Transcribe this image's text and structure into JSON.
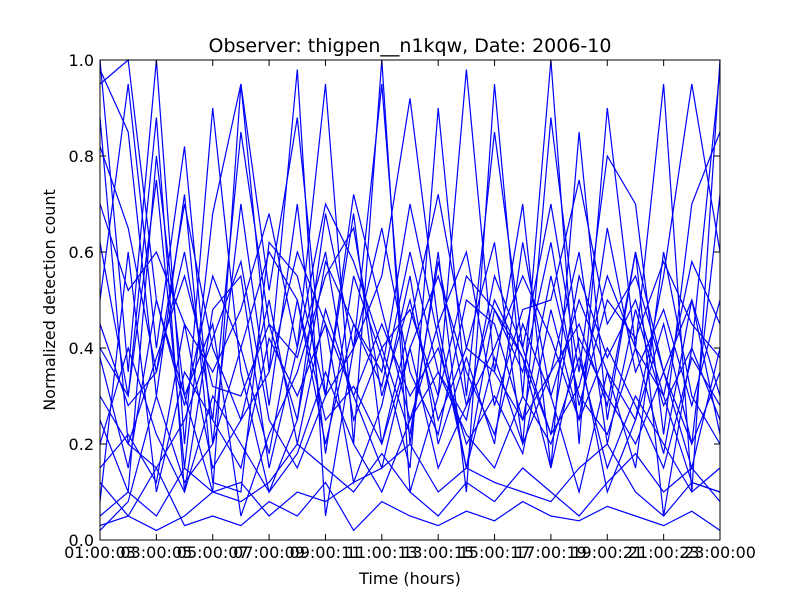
{
  "chart_data": {
    "type": "line",
    "title": "Observer: thigpen__n1kqw, Date: 2006-10",
    "xlabel": "Time (hours)",
    "ylabel": "Normalized detection count",
    "x_tick_labels": [
      "01:00:03",
      "03:00:05",
      "05:00:07",
      "07:00:09",
      "09:00:11",
      "11:00:13",
      "13:00:15",
      "15:00:17",
      "17:00:19",
      "19:00:21",
      "21:00:23",
      "23:00:00"
    ],
    "y_tick_labels": [
      "0.0",
      "0.2",
      "0.4",
      "0.6",
      "0.8",
      "1.0"
    ],
    "ylim": [
      0,
      1
    ],
    "xlim": [
      1,
      23
    ],
    "grid": false,
    "line_color": "#0000ff",
    "x": [
      1,
      2,
      3,
      4,
      5,
      6,
      7,
      8,
      9,
      10,
      11,
      12,
      13,
      14,
      15,
      16,
      17,
      18,
      19,
      20,
      21,
      22,
      23
    ],
    "series": [
      {
        "values": [
          0.98,
          0.85,
          0.3,
          0.72,
          0.12,
          0.1,
          0.62,
          0.55,
          0.3,
          0.68,
          0.2,
          0.45,
          0.72,
          0.4,
          0.35,
          0.25,
          0.55,
          0.3,
          0.22,
          0.4,
          0.18,
          0.5,
          0.3
        ]
      },
      {
        "values": [
          0.62,
          0.3,
          0.88,
          0.1,
          0.48,
          0.55,
          0.15,
          0.4,
          0.95,
          0.2,
          1.0,
          0.1,
          0.3,
          0.98,
          0.35,
          0.7,
          0.15,
          0.85,
          0.25,
          0.6,
          0.05,
          0.4,
          0.98
        ]
      },
      {
        "values": [
          0.45,
          0.28,
          0.35,
          0.7,
          0.4,
          0.25,
          0.35,
          0.6,
          0.45,
          0.3,
          0.15,
          0.4,
          0.55,
          0.35,
          0.22,
          0.45,
          0.3,
          0.5,
          0.35,
          0.25,
          0.45,
          0.2,
          0.35
        ]
      },
      {
        "values": [
          0.05,
          0.1,
          0.05,
          0.15,
          0.1,
          0.08,
          0.12,
          0.2,
          0.15,
          0.1,
          0.18,
          0.1,
          0.05,
          0.12,
          0.08,
          0.15,
          0.1,
          0.05,
          0.12,
          0.18,
          0.1,
          0.15,
          0.08
        ]
      },
      {
        "values": [
          0.25,
          0.1,
          0.8,
          0.3,
          0.45,
          0.05,
          0.22,
          0.35,
          0.55,
          0.65,
          0.3,
          0.5,
          0.25,
          0.4,
          0.62,
          0.2,
          0.35,
          0.45,
          0.28,
          0.6,
          0.35,
          0.15,
          0.4
        ]
      },
      {
        "values": [
          1.0,
          0.35,
          1.0,
          0.2,
          0.9,
          0.35,
          0.1,
          0.25,
          0.68,
          0.4,
          0.55,
          0.92,
          0.45,
          0.15,
          0.38,
          0.2,
          0.88,
          0.4,
          0.1,
          0.25,
          0.55,
          0.95,
          0.6
        ]
      },
      {
        "values": [
          0.12,
          0.05,
          0.02,
          0.05,
          0.1,
          0.12,
          0.05,
          0.1,
          0.08,
          0.12,
          0.15,
          0.2,
          0.1,
          0.15,
          0.12,
          0.1,
          0.08,
          0.15,
          0.2,
          0.1,
          0.05,
          0.12,
          0.1
        ]
      },
      {
        "values": [
          0.4,
          0.3,
          0.75,
          0.15,
          0.68,
          0.95,
          0.52,
          0.88,
          0.3,
          0.72,
          0.48,
          0.25,
          0.45,
          0.6,
          0.28,
          0.48,
          0.5,
          0.75,
          0.45,
          0.55,
          0.35,
          0.2,
          0.72
        ]
      },
      {
        "values": [
          0.02,
          0.08,
          0.3,
          0.12,
          0.2,
          0.4,
          0.6,
          0.5,
          0.2,
          0.45,
          0.35,
          0.7,
          0.42,
          0.15,
          0.48,
          0.38,
          0.22,
          0.32,
          0.55,
          0.4,
          0.3,
          0.12,
          0.1
        ]
      },
      {
        "values": [
          0.3,
          0.2,
          0.38,
          0.55,
          0.32,
          0.3,
          0.45,
          0.38,
          0.6,
          0.25,
          0.4,
          0.22,
          0.58,
          0.28,
          0.4,
          0.55,
          0.42,
          0.25,
          0.65,
          0.35,
          0.48,
          0.28,
          0.5
        ]
      },
      {
        "values": [
          0.88,
          0.2,
          0.15,
          0.25,
          0.42,
          0.58,
          0.25,
          0.15,
          0.3,
          0.4,
          0.65,
          0.35,
          0.22,
          0.5,
          0.45,
          0.25,
          0.35,
          0.6,
          0.2,
          0.48,
          0.28,
          0.4,
          0.25
        ]
      },
      {
        "values": [
          0.08,
          0.6,
          0.1,
          0.35,
          0.25,
          0.15,
          0.42,
          0.3,
          0.45,
          0.12,
          0.28,
          0.55,
          0.2,
          0.38,
          0.2,
          0.62,
          0.3,
          0.1,
          0.35,
          0.15,
          0.6,
          0.3,
          0.2
        ]
      },
      {
        "values": [
          0.5,
          0.95,
          0.4,
          0.82,
          0.2,
          0.7,
          0.28,
          0.7,
          0.18,
          0.55,
          0.38,
          0.15,
          0.9,
          0.3,
          0.85,
          0.4,
          0.7,
          0.35,
          0.8,
          0.7,
          0.22,
          0.7,
          0.85
        ]
      },
      {
        "values": [
          0.2,
          0.4,
          0.22,
          0.1,
          0.3,
          0.2,
          0.1,
          0.18,
          0.35,
          0.2,
          0.1,
          0.25,
          0.35,
          0.22,
          0.15,
          0.3,
          0.2,
          0.38,
          0.15,
          0.3,
          0.2,
          0.1,
          0.15
        ]
      },
      {
        "values": [
          0.7,
          0.52,
          0.6,
          0.45,
          0.35,
          0.48,
          0.68,
          0.4,
          0.7,
          0.58,
          0.4,
          0.48,
          0.3,
          0.55,
          0.48,
          0.35,
          0.62,
          0.28,
          0.5,
          0.42,
          0.58,
          0.45,
          0.38
        ]
      },
      {
        "values": [
          0.95,
          1.0,
          0.5,
          0.3,
          0.1,
          0.95,
          0.35,
          0.98,
          0.05,
          0.4,
          0.95,
          0.2,
          0.6,
          0.1,
          0.95,
          0.3,
          1.0,
          0.2,
          0.9,
          0.4,
          0.95,
          0.1,
          1.0
        ]
      },
      {
        "values": [
          0.38,
          0.15,
          0.5,
          0.28,
          0.55,
          0.4,
          0.18,
          0.5,
          0.25,
          0.32,
          0.2,
          0.4,
          0.15,
          0.28,
          0.5,
          0.38,
          0.15,
          0.42,
          0.3,
          0.2,
          0.35,
          0.5,
          0.22
        ]
      },
      {
        "values": [
          0.15,
          0.22,
          0.12,
          0.45,
          0.15,
          0.25,
          0.5,
          0.2,
          0.48,
          0.3,
          0.45,
          0.3,
          0.4,
          0.2,
          0.3,
          0.18,
          0.48,
          0.25,
          0.4,
          0.28,
          0.15,
          0.38,
          0.28
        ]
      },
      {
        "values": [
          0.03,
          0.05,
          0.15,
          0.03,
          0.05,
          0.03,
          0.08,
          0.05,
          0.12,
          0.02,
          0.08,
          0.05,
          0.03,
          0.06,
          0.04,
          0.08,
          0.05,
          0.04,
          0.07,
          0.05,
          0.03,
          0.06,
          0.02
        ]
      },
      {
        "values": [
          0.82,
          0.65,
          0.35,
          0.6,
          0.25,
          0.85,
          0.45,
          0.25,
          0.58,
          0.45,
          0.32,
          0.6,
          0.35,
          0.25,
          0.55,
          0.4,
          0.22,
          0.55,
          0.38,
          0.5,
          0.3,
          0.58,
          0.45
        ]
      }
    ]
  }
}
